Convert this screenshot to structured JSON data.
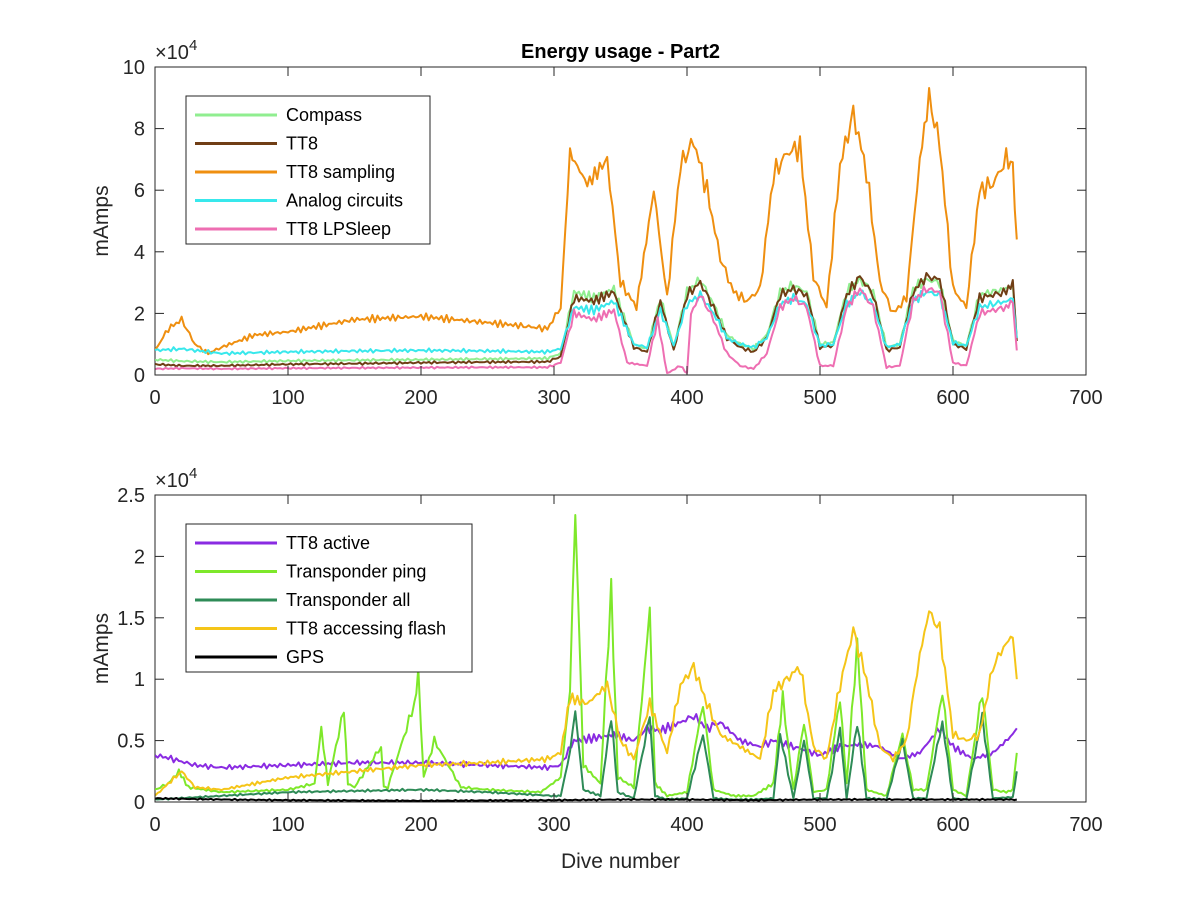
{
  "chart_data": [
    {
      "type": "line",
      "title": "Energy usage - Part2",
      "xlabel": "",
      "ylabel": "mAmps",
      "xlim": [
        0,
        700
      ],
      "ylim": [
        0,
        100000
      ],
      "x_ticks": [
        "0",
        "100",
        "200",
        "300",
        "400",
        "500",
        "600",
        "700"
      ],
      "y_ticks": [
        "0",
        "2",
        "4",
        "6",
        "8",
        "10"
      ],
      "y_exponent": {
        "base": "10",
        "power": "4"
      },
      "legend_position": "top-left",
      "grid": false,
      "series": [
        {
          "name": "Compass",
          "color": "#90ee90",
          "x": [
            0,
            20,
            50,
            100,
            150,
            200,
            250,
            295,
            305,
            315,
            330,
            345,
            360,
            370,
            380,
            390,
            400,
            410,
            420,
            430,
            440,
            450,
            460,
            470,
            480,
            490,
            500,
            510,
            520,
            530,
            540,
            550,
            560,
            570,
            580,
            590,
            600,
            610,
            620,
            630,
            640,
            645,
            648
          ],
          "y": [
            5000,
            4500,
            4200,
            4600,
            4800,
            5000,
            5200,
            5400,
            7000,
            27000,
            25000,
            28000,
            10000,
            8500,
            25000,
            9000,
            27000,
            31000,
            23000,
            13000,
            10000,
            8500,
            13000,
            27000,
            29000,
            27000,
            10000,
            10500,
            27000,
            31000,
            27000,
            9000,
            10000,
            28000,
            31000,
            30000,
            11000,
            9500,
            26000,
            27000,
            28000,
            29000,
            12000
          ]
        },
        {
          "name": "TT8",
          "color": "#703e15",
          "x": [
            0,
            20,
            50,
            100,
            150,
            200,
            250,
            295,
            305,
            315,
            330,
            345,
            360,
            370,
            380,
            390,
            400,
            410,
            420,
            430,
            440,
            450,
            460,
            470,
            480,
            490,
            500,
            510,
            520,
            530,
            540,
            550,
            560,
            570,
            580,
            590,
            600,
            610,
            620,
            630,
            640,
            645,
            648
          ],
          "y": [
            3500,
            3000,
            3000,
            3500,
            3700,
            4000,
            4200,
            4300,
            6000,
            25000,
            24000,
            27000,
            9000,
            7500,
            24000,
            8000,
            26000,
            30000,
            22000,
            12000,
            9000,
            7500,
            12000,
            26000,
            28000,
            26000,
            9000,
            9500,
            26000,
            32000,
            26000,
            8000,
            9000,
            27000,
            32000,
            31000,
            10000,
            8500,
            25000,
            26000,
            27000,
            30000,
            11000
          ]
        },
        {
          "name": "TT8 sampling",
          "color": "#ef8f10",
          "x": [
            0,
            10,
            20,
            30,
            40,
            50,
            75,
            100,
            125,
            150,
            175,
            200,
            225,
            250,
            275,
            295,
            305,
            312,
            325,
            340,
            350,
            362,
            375,
            385,
            395,
            405,
            415,
            425,
            435,
            445,
            455,
            465,
            475,
            485,
            495,
            505,
            515,
            525,
            535,
            545,
            555,
            565,
            575,
            582,
            590,
            600,
            610,
            620,
            630,
            640,
            645,
            648
          ],
          "y": [
            8000,
            15000,
            18000,
            10000,
            7000,
            9000,
            13000,
            14000,
            16000,
            18000,
            18500,
            19000,
            18000,
            17000,
            16000,
            15000,
            22000,
            72000,
            62000,
            70000,
            30000,
            22000,
            60000,
            25000,
            68000,
            76000,
            60000,
            38000,
            27000,
            24000,
            28000,
            65000,
            72000,
            74000,
            32000,
            22000,
            68000,
            85000,
            66000,
            30000,
            20000,
            25000,
            70000,
            90000,
            75000,
            28000,
            22000,
            60000,
            62000,
            70000,
            68000,
            44000
          ]
        },
        {
          "name": "Analog circuits",
          "color": "#38e8ec",
          "x": [
            0,
            20,
            50,
            100,
            150,
            200,
            250,
            295,
            305,
            315,
            330,
            345,
            360,
            370,
            380,
            390,
            400,
            410,
            420,
            430,
            440,
            450,
            460,
            470,
            480,
            490,
            500,
            510,
            520,
            530,
            540,
            550,
            560,
            570,
            580,
            590,
            600,
            610,
            620,
            630,
            640,
            645,
            648
          ],
          "y": [
            8000,
            8500,
            7000,
            7500,
            7800,
            8000,
            7800,
            7500,
            8500,
            22000,
            21000,
            24000,
            10000,
            9000,
            21000,
            9500,
            23000,
            26000,
            20000,
            12000,
            10000,
            9000,
            12000,
            23000,
            25000,
            23000,
            9500,
            10000,
            23000,
            27000,
            23000,
            9000,
            10000,
            24000,
            27000,
            26000,
            10500,
            9500,
            22000,
            23000,
            24000,
            25000,
            12000
          ]
        },
        {
          "name": "TT8 LPSleep",
          "color": "#ee6eb2",
          "x": [
            0,
            20,
            50,
            100,
            150,
            200,
            250,
            295,
            305,
            315,
            330,
            345,
            355,
            370,
            378,
            385,
            395,
            400,
            403,
            410,
            420,
            430,
            440,
            450,
            460,
            470,
            480,
            490,
            500,
            510,
            520,
            530,
            540,
            550,
            560,
            570,
            580,
            590,
            600,
            610,
            620,
            630,
            640,
            645,
            648
          ],
          "y": [
            2000,
            2200,
            2000,
            2200,
            2300,
            2400,
            2500,
            2500,
            4000,
            20000,
            18000,
            21000,
            4000,
            3000,
            18000,
            500,
            3000,
            500,
            20000,
            26000,
            18000,
            7000,
            3000,
            2000,
            7000,
            22000,
            25000,
            22000,
            3000,
            3000,
            22000,
            28000,
            22000,
            2500,
            3000,
            24000,
            28000,
            27000,
            4000,
            3000,
            20000,
            21000,
            22000,
            24000,
            8000
          ]
        }
      ]
    },
    {
      "type": "line",
      "title": "",
      "xlabel": "Dive number",
      "ylabel": "mAmps",
      "xlim": [
        0,
        700
      ],
      "ylim": [
        0,
        25000
      ],
      "x_ticks": [
        "0",
        "100",
        "200",
        "300",
        "400",
        "500",
        "600",
        "700"
      ],
      "y_ticks": [
        "0",
        "0.5",
        "1",
        "1.5",
        "2",
        "2.5"
      ],
      "y_exponent": {
        "base": "10",
        "power": "4"
      },
      "legend_position": "top-left",
      "grid": false,
      "series": [
        {
          "name": "TT8 active",
          "color": "#8a2be2",
          "x": [
            0,
            10,
            30,
            50,
            100,
            150,
            200,
            250,
            295,
            305,
            315,
            330,
            345,
            360,
            370,
            380,
            395,
            405,
            415,
            425,
            440,
            455,
            465,
            480,
            490,
            500,
            515,
            530,
            545,
            560,
            575,
            590,
            600,
            615,
            630,
            645,
            648
          ],
          "y": [
            3800,
            3600,
            3000,
            2800,
            3000,
            3200,
            3200,
            3000,
            2800,
            3000,
            5000,
            5200,
            5500,
            5000,
            6000,
            5800,
            6500,
            7000,
            6000,
            6500,
            5000,
            4500,
            5000,
            4500,
            4200,
            3800,
            4500,
            4700,
            4500,
            3500,
            4000,
            6000,
            4500,
            3500,
            4000,
            5500,
            6000
          ]
        },
        {
          "name": "Transponder ping",
          "color": "#7ee82a",
          "x": [
            0,
            10,
            18,
            25,
            50,
            100,
            120,
            125,
            130,
            142,
            145,
            150,
            170,
            172,
            175,
            195,
            198,
            202,
            210,
            230,
            250,
            290,
            305,
            312,
            316,
            322,
            335,
            343,
            348,
            360,
            372,
            376,
            385,
            400,
            412,
            420,
            435,
            450,
            465,
            472,
            480,
            488,
            495,
            505,
            515,
            520,
            528,
            535,
            550,
            562,
            570,
            580,
            592,
            600,
            610,
            622,
            630,
            640,
            645,
            648
          ],
          "y": [
            1000,
            1500,
            2500,
            1200,
            800,
            1000,
            1500,
            6000,
            1500,
            7500,
            1500,
            1200,
            4500,
            1200,
            1200,
            8000,
            10500,
            2000,
            5000,
            1200,
            1000,
            800,
            2000,
            9000,
            24000,
            3000,
            1500,
            17500,
            2000,
            1200,
            15500,
            1500,
            500,
            800,
            8000,
            1000,
            500,
            500,
            1500,
            8500,
            1000,
            6500,
            800,
            1000,
            8500,
            1500,
            13000,
            1000,
            500,
            5500,
            1000,
            1000,
            9000,
            1000,
            500,
            9000,
            1000,
            800,
            1000,
            4000
          ]
        },
        {
          "name": "Transponder all",
          "color": "#2e8b57",
          "x": [
            0,
            50,
            100,
            150,
            200,
            250,
            300,
            305,
            312,
            316,
            322,
            335,
            343,
            348,
            360,
            372,
            376,
            385,
            400,
            412,
            420,
            435,
            450,
            465,
            470,
            480,
            488,
            495,
            505,
            515,
            520,
            528,
            535,
            550,
            562,
            570,
            580,
            592,
            600,
            610,
            622,
            630,
            645,
            648
          ],
          "y": [
            200,
            500,
            800,
            900,
            1000,
            800,
            500,
            500,
            4000,
            7500,
            1000,
            500,
            7000,
            800,
            300,
            7000,
            500,
            200,
            300,
            5500,
            300,
            200,
            200,
            300,
            5500,
            300,
            5000,
            300,
            300,
            6000,
            300,
            6500,
            300,
            200,
            5000,
            300,
            300,
            6500,
            300,
            200,
            7000,
            300,
            400,
            2500
          ]
        },
        {
          "name": "TT8 accessing flash",
          "color": "#f5c518",
          "x": [
            0,
            10,
            20,
            30,
            50,
            75,
            100,
            150,
            200,
            250,
            295,
            305,
            312,
            325,
            340,
            350,
            360,
            372,
            385,
            395,
            405,
            415,
            425,
            440,
            455,
            465,
            475,
            485,
            495,
            505,
            515,
            525,
            535,
            545,
            555,
            565,
            575,
            582,
            590,
            600,
            610,
            620,
            630,
            640,
            645,
            648
          ],
          "y": [
            500,
            1500,
            2500,
            1200,
            1000,
            1500,
            2000,
            2500,
            3000,
            3200,
            3500,
            4000,
            8500,
            8000,
            9500,
            5000,
            3500,
            8000,
            4000,
            9500,
            11000,
            8000,
            5500,
            4500,
            3500,
            9000,
            10000,
            11000,
            4500,
            3500,
            9500,
            14000,
            10000,
            4500,
            3500,
            5000,
            12000,
            15500,
            14000,
            5500,
            5000,
            5500,
            11000,
            13000,
            13500,
            10000
          ]
        },
        {
          "name": "GPS",
          "color": "#000000",
          "x": [
            0,
            50,
            100,
            200,
            300,
            350,
            400,
            450,
            500,
            550,
            600,
            648
          ],
          "y": [
            300,
            200,
            150,
            100,
            150,
            200,
            200,
            150,
            200,
            200,
            200,
            200
          ]
        }
      ]
    }
  ]
}
